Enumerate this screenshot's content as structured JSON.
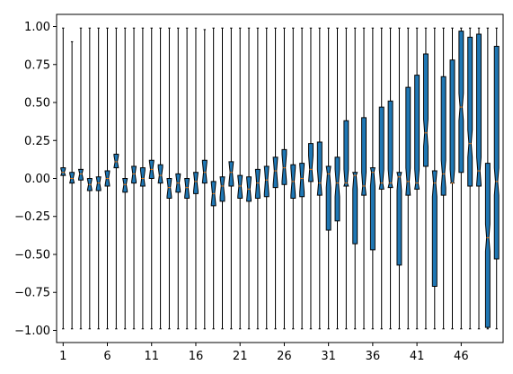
{
  "chart_data": {
    "type": "box",
    "title": "",
    "xlabel": "",
    "ylabel": "",
    "ylim": [
      -1.08,
      1.08
    ],
    "grid": false,
    "box_color": "#1f77b4",
    "median_color": "#ff7f0e",
    "yticks": [
      {
        "value": 1.0,
        "label": "1.00"
      },
      {
        "value": 0.75,
        "label": "0.75"
      },
      {
        "value": 0.5,
        "label": "0.50"
      },
      {
        "value": 0.25,
        "label": "0.25"
      },
      {
        "value": 0.0,
        "label": "0.00"
      },
      {
        "value": -0.25,
        "label": "−0.25"
      },
      {
        "value": -0.5,
        "label": "−0.50"
      },
      {
        "value": -0.75,
        "label": "−0.75"
      },
      {
        "value": -1.0,
        "label": "−1.00"
      }
    ],
    "xticks": [
      {
        "position": 1,
        "label": "1"
      },
      {
        "position": 6,
        "label": "6"
      },
      {
        "position": 11,
        "label": "11"
      },
      {
        "position": 16,
        "label": "16"
      },
      {
        "position": 21,
        "label": "21"
      },
      {
        "position": 26,
        "label": "26"
      },
      {
        "position": 31,
        "label": "31"
      },
      {
        "position": 36,
        "label": "36"
      },
      {
        "position": 41,
        "label": "41"
      },
      {
        "position": 46,
        "label": "46"
      }
    ],
    "boxes": [
      {
        "whislo": -0.99,
        "q1": 0.02,
        "med": 0.04,
        "q3": 0.07,
        "whishi": 0.99
      },
      {
        "whislo": -0.99,
        "q1": -0.03,
        "med": 0.0,
        "q3": 0.04,
        "whishi": 0.9
      },
      {
        "whislo": -0.99,
        "q1": -0.01,
        "med": 0.03,
        "q3": 0.06,
        "whishi": 0.99
      },
      {
        "whislo": -0.99,
        "q1": -0.08,
        "med": -0.04,
        "q3": 0.0,
        "whishi": 0.99
      },
      {
        "whislo": -0.99,
        "q1": -0.08,
        "med": -0.03,
        "q3": 0.01,
        "whishi": 0.99
      },
      {
        "whislo": -0.99,
        "q1": -0.05,
        "med": 0.0,
        "q3": 0.05,
        "whishi": 0.99
      },
      {
        "whislo": -0.99,
        "q1": 0.07,
        "med": 0.11,
        "q3": 0.16,
        "whishi": 0.99
      },
      {
        "whislo": -0.99,
        "q1": -0.09,
        "med": -0.04,
        "q3": 0.0,
        "whishi": 0.99
      },
      {
        "whislo": -0.99,
        "q1": -0.03,
        "med": 0.03,
        "q3": 0.08,
        "whishi": 0.99
      },
      {
        "whislo": -0.99,
        "q1": -0.05,
        "med": 0.0,
        "q3": 0.07,
        "whishi": 0.99
      },
      {
        "whislo": -0.99,
        "q1": 0.0,
        "med": 0.06,
        "q3": 0.12,
        "whishi": 0.99
      },
      {
        "whislo": -0.99,
        "q1": -0.03,
        "med": 0.02,
        "q3": 0.09,
        "whishi": 0.99
      },
      {
        "whislo": -0.99,
        "q1": -0.13,
        "med": -0.06,
        "q3": 0.0,
        "whishi": 0.99
      },
      {
        "whislo": -0.99,
        "q1": -0.09,
        "med": -0.03,
        "q3": 0.03,
        "whishi": 0.99
      },
      {
        "whislo": -0.99,
        "q1": -0.13,
        "med": -0.06,
        "q3": 0.0,
        "whishi": 0.99
      },
      {
        "whislo": -0.99,
        "q1": -0.1,
        "med": -0.02,
        "q3": 0.04,
        "whishi": 0.99
      },
      {
        "whislo": -0.99,
        "q1": -0.03,
        "med": 0.04,
        "q3": 0.12,
        "whishi": 0.98
      },
      {
        "whislo": -0.99,
        "q1": -0.18,
        "med": -0.1,
        "q3": -0.02,
        "whishi": 0.99
      },
      {
        "whislo": -0.99,
        "q1": -0.15,
        "med": -0.05,
        "q3": 0.01,
        "whishi": 0.99
      },
      {
        "whislo": -0.99,
        "q1": -0.05,
        "med": 0.04,
        "q3": 0.11,
        "whishi": 0.99
      },
      {
        "whislo": -0.99,
        "q1": -0.13,
        "med": -0.05,
        "q3": 0.02,
        "whishi": 0.99
      },
      {
        "whislo": -0.99,
        "q1": -0.15,
        "med": -0.07,
        "q3": 0.01,
        "whishi": 0.99
      },
      {
        "whislo": -0.99,
        "q1": -0.13,
        "med": -0.03,
        "q3": 0.06,
        "whishi": 0.99
      },
      {
        "whislo": -0.99,
        "q1": -0.12,
        "med": -0.01,
        "q3": 0.08,
        "whishi": 0.99
      },
      {
        "whislo": -0.99,
        "q1": -0.06,
        "med": 0.05,
        "q3": 0.14,
        "whishi": 0.99
      },
      {
        "whislo": -0.99,
        "q1": -0.04,
        "med": 0.07,
        "q3": 0.19,
        "whishi": 0.99
      },
      {
        "whislo": -0.99,
        "q1": -0.13,
        "med": -0.02,
        "q3": 0.09,
        "whishi": 0.99
      },
      {
        "whislo": -0.99,
        "q1": -0.12,
        "med": 0.0,
        "q3": 0.1,
        "whishi": 0.99
      },
      {
        "whislo": -0.99,
        "q1": -0.02,
        "med": 0.06,
        "q3": 0.23,
        "whishi": 0.99
      },
      {
        "whislo": -0.99,
        "q1": -0.11,
        "med": -0.03,
        "q3": 0.24,
        "whishi": 0.99
      },
      {
        "whislo": -0.99,
        "q1": -0.34,
        "med": 0.03,
        "q3": 0.08,
        "whishi": 0.99
      },
      {
        "whislo": -0.99,
        "q1": -0.28,
        "med": -0.03,
        "q3": 0.14,
        "whishi": 0.99
      },
      {
        "whislo": -0.99,
        "q1": -0.05,
        "med": -0.03,
        "q3": 0.38,
        "whishi": 0.99
      },
      {
        "whislo": -0.99,
        "q1": -0.43,
        "med": 0.02,
        "q3": 0.04,
        "whishi": 0.99
      },
      {
        "whislo": -0.99,
        "q1": -0.11,
        "med": -0.05,
        "q3": 0.4,
        "whishi": 0.99
      },
      {
        "whislo": -0.99,
        "q1": -0.47,
        "med": 0.04,
        "q3": 0.07,
        "whishi": 0.99
      },
      {
        "whislo": -0.99,
        "q1": -0.07,
        "med": -0.03,
        "q3": 0.47,
        "whishi": 0.99
      },
      {
        "whislo": -0.99,
        "q1": -0.06,
        "med": -0.03,
        "q3": 0.51,
        "whishi": 0.99
      },
      {
        "whislo": -0.99,
        "q1": -0.57,
        "med": 0.01,
        "q3": 0.04,
        "whishi": 0.99
      },
      {
        "whislo": -0.99,
        "q1": -0.11,
        "med": -0.02,
        "q3": 0.6,
        "whishi": 0.99
      },
      {
        "whislo": -0.99,
        "q1": -0.07,
        "med": -0.03,
        "q3": 0.68,
        "whishi": 0.99
      },
      {
        "whislo": -0.99,
        "q1": 0.08,
        "med": 0.3,
        "q3": 0.82,
        "whishi": 0.99
      },
      {
        "whislo": -0.99,
        "q1": -0.71,
        "med": -0.03,
        "q3": 0.05,
        "whishi": 0.99
      },
      {
        "whislo": -0.99,
        "q1": -0.11,
        "med": 0.03,
        "q3": 0.67,
        "whishi": 0.99
      },
      {
        "whislo": -0.99,
        "q1": -0.03,
        "med": -0.03,
        "q3": 0.78,
        "whishi": 0.99
      },
      {
        "whislo": -0.99,
        "q1": 0.04,
        "med": 0.47,
        "q3": 0.97,
        "whishi": 0.99
      },
      {
        "whislo": -0.99,
        "q1": -0.05,
        "med": 0.23,
        "q3": 0.93,
        "whishi": 0.99
      },
      {
        "whislo": -0.99,
        "q1": -0.05,
        "med": 0.05,
        "q3": 0.95,
        "whishi": 0.99
      },
      {
        "whislo": -0.99,
        "q1": -0.98,
        "med": -0.39,
        "q3": 0.1,
        "whishi": 0.99
      },
      {
        "whislo": -0.99,
        "q1": -0.53,
        "med": -0.02,
        "q3": 0.87,
        "whishi": 0.99
      }
    ]
  }
}
